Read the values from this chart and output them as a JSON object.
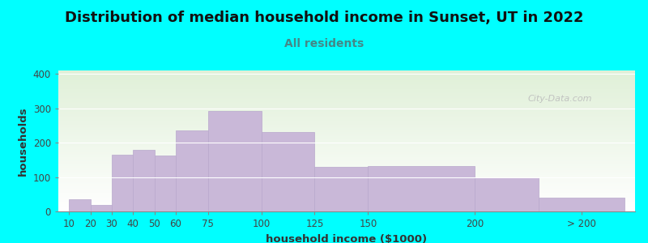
{
  "title": "Distribution of median household income in Sunset, UT in 2022",
  "subtitle": "All residents",
  "xlabel": "household income ($1000)",
  "ylabel": "households",
  "background_color": "#00FFFF",
  "plot_bg_top": "#e0f0d8",
  "plot_bg_bottom": "#ffffff",
  "bar_color": "#c9b8d8",
  "bar_edge_color": "#b8a8cc",
  "title_fontsize": 13,
  "subtitle_fontsize": 10,
  "label_fontsize": 9.5,
  "tick_fontsize": 8.5,
  "values": [
    35,
    20,
    165,
    178,
    162,
    235,
    292,
    230,
    130,
    133,
    100,
    40
  ],
  "bar_lefts": [
    10,
    20,
    30,
    40,
    50,
    60,
    75,
    100,
    125,
    150,
    200,
    230
  ],
  "bar_rights": [
    20,
    30,
    40,
    50,
    60,
    75,
    100,
    125,
    150,
    200,
    230,
    270
  ],
  "ylim": [
    0,
    410
  ],
  "yticks": [
    0,
    100,
    200,
    300,
    400
  ],
  "xtick_labels": [
    "10",
    "20",
    "30",
    "40",
    "50",
    "60",
    "75",
    "100",
    "125",
    "150",
    "200",
    "> 200"
  ],
  "xtick_positions": [
    10,
    20,
    30,
    40,
    50,
    60,
    75,
    100,
    125,
    150,
    200,
    250
  ],
  "xlim": [
    5,
    275
  ],
  "watermark_text": "City-Data.com",
  "subtitle_color": "#448888",
  "title_color": "#111111",
  "axis_label_color": "#333333",
  "tick_color": "#444444"
}
